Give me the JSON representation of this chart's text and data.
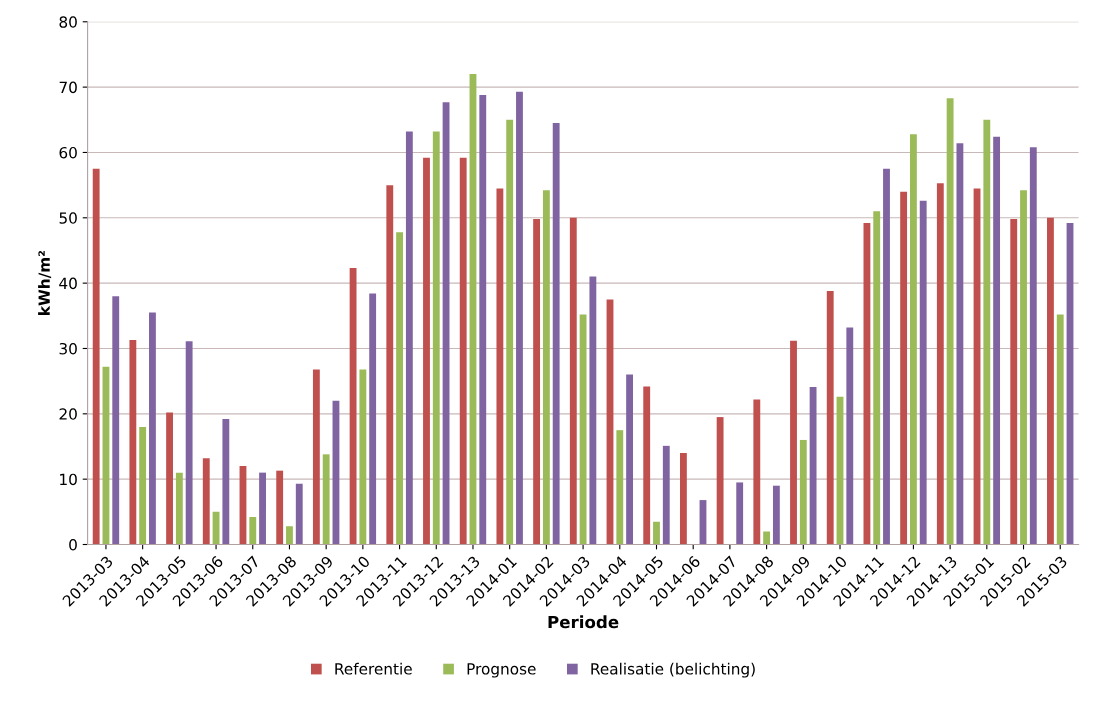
{
  "chart_data": {
    "type": "bar",
    "xlabel": "Periode",
    "ylabel": "kWh/m²",
    "categories": [
      "2013-03",
      "2013-04",
      "2013-05",
      "2013-06",
      "2013-07",
      "2013-08",
      "2013-09",
      "2013-10",
      "2013-11",
      "2013-12",
      "2013-13",
      "2014-01",
      "2014-02",
      "2014-03",
      "2014-04",
      "2014-05",
      "2014-06",
      "2014-07",
      "2014-08",
      "2014-09",
      "2014-10",
      "2014-11",
      "2014-12",
      "2014-13",
      "2015-01",
      "2015-02",
      "2015-03"
    ],
    "series": [
      {
        "name": "Referentie",
        "color": "#c0504d",
        "values": [
          57.5,
          31.3,
          20.2,
          13.2,
          12,
          11.3,
          26.8,
          42.3,
          55,
          59.2,
          59.2,
          54.5,
          49.8,
          50,
          37.5,
          24.2,
          14,
          19.5,
          22.2,
          31.2,
          38.8,
          49.2,
          54,
          55.3,
          54.5,
          49.8,
          50
        ]
      },
      {
        "name": "Prognose",
        "color": "#9bbb59",
        "values": [
          27.2,
          18,
          11,
          5,
          4.2,
          2.8,
          13.8,
          26.8,
          47.8,
          63.2,
          72,
          65,
          54.2,
          35.2,
          17.5,
          3.5,
          null,
          null,
          2,
          16,
          22.6,
          51,
          62.8,
          68.3,
          65,
          54.2,
          35.2
        ]
      },
      {
        "name": "Realisatie (belichting)",
        "color": "#8064a2",
        "values": [
          38,
          35.5,
          31.1,
          19.2,
          11,
          9.3,
          22,
          38.4,
          63.2,
          67.7,
          68.8,
          69.3,
          64.5,
          41,
          26,
          15.1,
          6.8,
          9.5,
          9,
          24.1,
          33.2,
          57.5,
          52.6,
          61.4,
          62.4,
          60.8,
          49.2
        ]
      }
    ],
    "ylim": [
      0,
      80
    ],
    "yticks": [
      0,
      10,
      20,
      30,
      40,
      50,
      60,
      70,
      80
    ],
    "grid": "y",
    "legend": "bottom"
  }
}
